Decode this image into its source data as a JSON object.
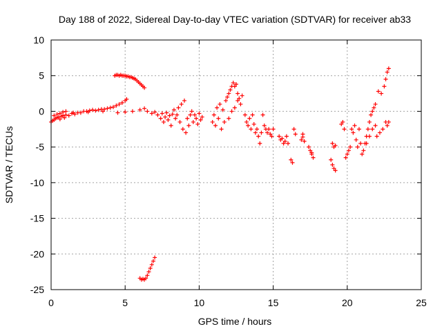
{
  "chart_data": {
    "type": "scatter",
    "title": "Day 188 of 2022, Sidereal Day-to-day VTEC variation (SDTVAR) for receiver ab33",
    "xlabel": "GPS time / hours",
    "ylabel": "SDTVAR / TECUs",
    "xlim": [
      0,
      25
    ],
    "ylim": [
      -25,
      10
    ],
    "xticks": [
      0,
      5,
      10,
      15,
      20,
      25
    ],
    "yticks": [
      -25,
      -20,
      -15,
      -10,
      -5,
      0,
      5,
      10
    ],
    "grid": true,
    "marker": "+",
    "color": "#ff0000",
    "series": [
      {
        "name": "SDTVAR",
        "points": [
          [
            0.0,
            -1.5
          ],
          [
            0.1,
            -1.3
          ],
          [
            0.2,
            -1.2
          ],
          [
            0.3,
            -1.0
          ],
          [
            0.4,
            -0.9
          ],
          [
            0.5,
            -0.8
          ],
          [
            0.6,
            -1.1
          ],
          [
            0.7,
            -0.7
          ],
          [
            0.8,
            -0.6
          ],
          [
            0.9,
            -0.9
          ],
          [
            1.0,
            -0.5
          ],
          [
            1.2,
            -0.6
          ],
          [
            1.4,
            -0.3
          ],
          [
            1.6,
            -0.4
          ],
          [
            1.8,
            -0.2
          ],
          [
            2.0,
            -0.2
          ],
          [
            2.2,
            0.0
          ],
          [
            2.4,
            0.0
          ],
          [
            2.6,
            0.1
          ],
          [
            2.8,
            0.2
          ],
          [
            3.0,
            0.1
          ],
          [
            3.2,
            0.2
          ],
          [
            3.4,
            0.3
          ],
          [
            3.6,
            0.3
          ],
          [
            3.8,
            0.4
          ],
          [
            4.0,
            0.5
          ],
          [
            4.2,
            0.6
          ],
          [
            4.4,
            0.8
          ],
          [
            4.6,
            1.0
          ],
          [
            4.8,
            1.2
          ],
          [
            5.0,
            1.5
          ],
          [
            5.1,
            1.7
          ],
          [
            0.2,
            -0.6
          ],
          [
            0.4,
            -0.4
          ],
          [
            0.6,
            -0.3
          ],
          [
            0.8,
            -0.1
          ],
          [
            1.0,
            0.0
          ],
          [
            1.5,
            -0.2
          ],
          [
            2.5,
            -0.1
          ],
          [
            3.5,
            0.0
          ],
          [
            4.5,
            -0.2
          ],
          [
            5.0,
            -0.1
          ],
          [
            5.5,
            0.0
          ],
          [
            6.0,
            0.2
          ],
          [
            6.3,
            0.4
          ],
          [
            6.5,
            0.0
          ],
          [
            6.8,
            -0.3
          ],
          [
            7.0,
            -0.1
          ],
          [
            4.3,
            5.0
          ],
          [
            4.4,
            5.1
          ],
          [
            4.5,
            5.1
          ],
          [
            4.6,
            5.0
          ],
          [
            4.7,
            5.1
          ],
          [
            4.8,
            5.0
          ],
          [
            4.9,
            5.0
          ],
          [
            5.0,
            5.0
          ],
          [
            5.1,
            4.9
          ],
          [
            5.2,
            4.9
          ],
          [
            5.3,
            4.8
          ],
          [
            5.4,
            4.8
          ],
          [
            5.5,
            4.7
          ],
          [
            5.6,
            4.6
          ],
          [
            5.7,
            4.5
          ],
          [
            5.8,
            4.3
          ],
          [
            5.9,
            4.1
          ],
          [
            6.0,
            3.9
          ],
          [
            6.1,
            3.7
          ],
          [
            6.2,
            3.5
          ],
          [
            6.3,
            3.3
          ],
          [
            6.0,
            -23.4
          ],
          [
            6.1,
            -23.6
          ],
          [
            6.2,
            -23.5
          ],
          [
            6.3,
            -23.6
          ],
          [
            6.4,
            -23.4
          ],
          [
            6.5,
            -23.0
          ],
          [
            6.6,
            -22.5
          ],
          [
            6.7,
            -22.0
          ],
          [
            6.8,
            -21.5
          ],
          [
            6.9,
            -21.0
          ],
          [
            7.0,
            -20.5
          ],
          [
            7.2,
            -0.5
          ],
          [
            7.4,
            -1.0
          ],
          [
            7.5,
            -0.3
          ],
          [
            7.6,
            -1.5
          ],
          [
            7.7,
            -0.8
          ],
          [
            7.8,
            -0.2
          ],
          [
            7.9,
            -1.2
          ],
          [
            8.0,
            -0.6
          ],
          [
            8.1,
            -2.0
          ],
          [
            8.2,
            -0.4
          ],
          [
            8.3,
            0.2
          ],
          [
            8.4,
            -1.0
          ],
          [
            8.5,
            -0.5
          ],
          [
            8.6,
            0.5
          ],
          [
            8.7,
            -1.5
          ],
          [
            8.8,
            1.0
          ],
          [
            8.9,
            -2.5
          ],
          [
            9.0,
            1.5
          ],
          [
            9.1,
            -3.0
          ],
          [
            9.2,
            -1.0
          ],
          [
            9.3,
            -2.0
          ],
          [
            9.4,
            -0.5
          ],
          [
            9.5,
            0.0
          ],
          [
            9.6,
            -1.5
          ],
          [
            9.7,
            -0.5
          ],
          [
            9.8,
            -1.0
          ],
          [
            9.9,
            -1.8
          ],
          [
            10.0,
            -0.3
          ],
          [
            10.1,
            -1.2
          ],
          [
            10.2,
            -0.8
          ],
          [
            10.9,
            -1.5
          ],
          [
            11.0,
            -0.5
          ],
          [
            11.1,
            -2.0
          ],
          [
            11.2,
            0.5
          ],
          [
            11.3,
            -1.0
          ],
          [
            11.4,
            1.0
          ],
          [
            11.5,
            -2.5
          ],
          [
            11.6,
            0.2
          ],
          [
            11.7,
            -1.5
          ],
          [
            11.8,
            1.5
          ],
          [
            11.9,
            2.0
          ],
          [
            12.0,
            2.5
          ],
          [
            12.1,
            3.0
          ],
          [
            12.2,
            3.5
          ],
          [
            12.3,
            4.0
          ],
          [
            12.4,
            3.5
          ],
          [
            12.5,
            3.8
          ],
          [
            12.6,
            2.5
          ],
          [
            12.7,
            1.8
          ],
          [
            12.8,
            1.0
          ],
          [
            12.0,
            -1.0
          ],
          [
            12.2,
            0.0
          ],
          [
            12.4,
            0.5
          ],
          [
            12.6,
            1.5
          ],
          [
            12.9,
            2.2
          ],
          [
            13.1,
            -0.5
          ],
          [
            13.2,
            -1.5
          ],
          [
            13.3,
            -2.0
          ],
          [
            13.4,
            -1.0
          ],
          [
            13.5,
            -2.5
          ],
          [
            13.6,
            -0.5
          ],
          [
            13.7,
            -1.8
          ],
          [
            13.8,
            -3.0
          ],
          [
            13.9,
            -2.5
          ],
          [
            14.0,
            -3.5
          ],
          [
            14.1,
            -4.5
          ],
          [
            14.2,
            -3.0
          ],
          [
            14.3,
            -0.5
          ],
          [
            14.4,
            -2.0
          ],
          [
            14.5,
            -2.5
          ],
          [
            14.6,
            -3.0
          ],
          [
            14.7,
            -2.5
          ],
          [
            14.8,
            -3.2
          ],
          [
            14.9,
            -3.5
          ],
          [
            15.0,
            -2.5
          ],
          [
            15.4,
            -3.5
          ],
          [
            15.5,
            -4.0
          ],
          [
            15.6,
            -3.8
          ],
          [
            15.7,
            -4.5
          ],
          [
            15.8,
            -4.2
          ],
          [
            15.9,
            -3.5
          ],
          [
            16.0,
            -4.5
          ],
          [
            16.2,
            -6.8
          ],
          [
            16.3,
            -7.2
          ],
          [
            16.4,
            -2.5
          ],
          [
            16.5,
            -3.2
          ],
          [
            16.9,
            -4.0
          ],
          [
            17.0,
            -3.6
          ],
          [
            17.1,
            -4.2
          ],
          [
            17.0,
            -3.2
          ],
          [
            17.4,
            -5.0
          ],
          [
            17.5,
            -5.5
          ],
          [
            17.6,
            -6.0
          ],
          [
            17.7,
            -6.5
          ],
          [
            17.6,
            -5.8
          ],
          [
            18.9,
            -6.8
          ],
          [
            19.0,
            -7.5
          ],
          [
            19.1,
            -8.0
          ],
          [
            19.2,
            -8.3
          ],
          [
            19.0,
            -4.5
          ],
          [
            19.1,
            -5.0
          ],
          [
            19.2,
            -4.8
          ],
          [
            19.6,
            -1.8
          ],
          [
            19.7,
            -1.5
          ],
          [
            19.8,
            -2.5
          ],
          [
            19.9,
            -6.5
          ],
          [
            20.0,
            -6.0
          ],
          [
            20.1,
            -5.5
          ],
          [
            20.2,
            -5.0
          ],
          [
            20.3,
            -2.5
          ],
          [
            20.4,
            -3.0
          ],
          [
            20.5,
            -2.0
          ],
          [
            20.6,
            -4.0
          ],
          [
            20.7,
            -5.0
          ],
          [
            20.8,
            -2.5
          ],
          [
            20.9,
            -4.5
          ],
          [
            21.0,
            -6.0
          ],
          [
            21.1,
            -5.5
          ],
          [
            21.2,
            -4.5
          ],
          [
            21.3,
            -3.5
          ],
          [
            21.4,
            -2.5
          ],
          [
            21.5,
            -1.5
          ],
          [
            21.6,
            -0.5
          ],
          [
            21.7,
            0.0
          ],
          [
            21.8,
            0.5
          ],
          [
            21.9,
            1.0
          ],
          [
            21.3,
            -4.5
          ],
          [
            21.5,
            -3.5
          ],
          [
            21.7,
            -2.5
          ],
          [
            21.9,
            -2.0
          ],
          [
            22.0,
            -3.5
          ],
          [
            22.1,
            2.8
          ],
          [
            22.2,
            -3.0
          ],
          [
            22.3,
            2.5
          ],
          [
            22.4,
            -2.5
          ],
          [
            22.5,
            3.5
          ],
          [
            22.6,
            4.5
          ],
          [
            22.7,
            5.5
          ],
          [
            22.8,
            6.0
          ],
          [
            22.6,
            -1.5
          ],
          [
            22.7,
            -2.0
          ],
          [
            22.8,
            -1.5
          ]
        ]
      }
    ]
  }
}
